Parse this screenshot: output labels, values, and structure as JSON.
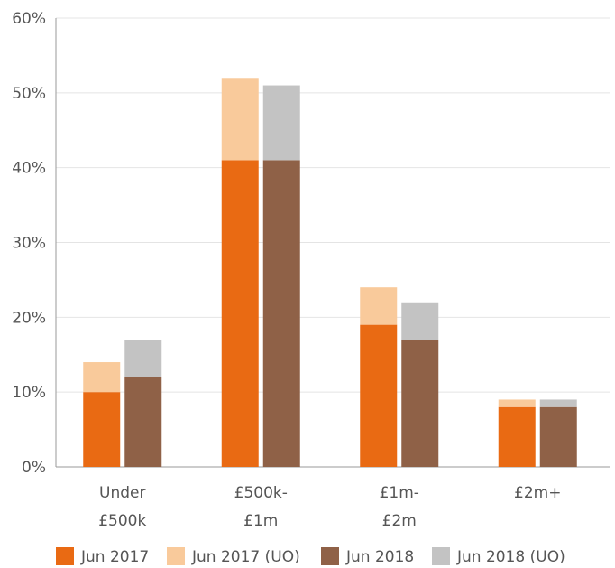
{
  "chart_data": {
    "type": "bar",
    "stacked_grouped": true,
    "title": "",
    "xlabel": "",
    "ylabel": "",
    "ylim": [
      0,
      60
    ],
    "y_ticks": [
      "0%",
      "10%",
      "20%",
      "30%",
      "40%",
      "50%",
      "60%"
    ],
    "grid": true,
    "legend_position": "bottom",
    "categories": [
      [
        "Under",
        "£500k"
      ],
      [
        "£500k-",
        "£1m"
      ],
      [
        "£1m-",
        "£2m"
      ],
      [
        "£2m+"
      ]
    ],
    "series": [
      {
        "name": "Jun 2017",
        "color": "#E96A13",
        "group": "Jun 2017",
        "values": [
          10,
          41,
          19,
          8
        ]
      },
      {
        "name": "Jun 2017 (UO)",
        "color": "#F9CA9B",
        "group": "Jun 2017",
        "values": [
          4,
          11,
          5,
          1
        ]
      },
      {
        "name": "Jun 2018",
        "color": "#8F6147",
        "group": "Jun 2018",
        "values": [
          12,
          41,
          17,
          8
        ]
      },
      {
        "name": "Jun 2018 (UO)",
        "color": "#C3C3C3",
        "group": "Jun 2018",
        "values": [
          5,
          10,
          5,
          1
        ]
      }
    ]
  }
}
